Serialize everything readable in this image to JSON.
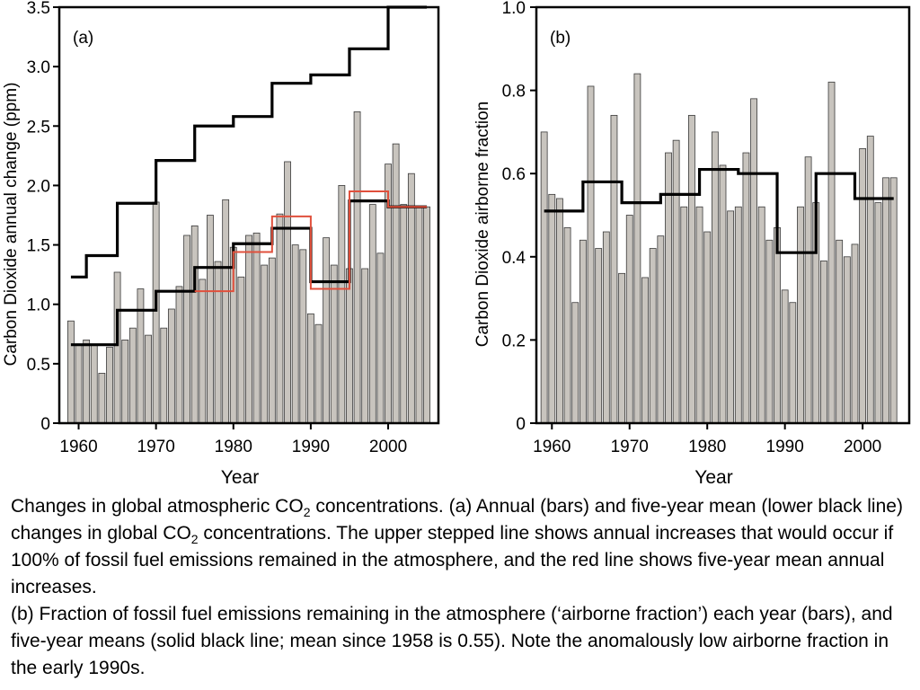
{
  "chart_data": [
    {
      "type": "bar",
      "panel_label": "(a)",
      "xlabel": "Year",
      "ylabel": "Carbon Dioxide annual change (ppm)",
      "xlim": [
        1957.5,
        2006.5
      ],
      "ylim": [
        0,
        3.5
      ],
      "xticks": [
        1960,
        1970,
        1980,
        1990,
        2000
      ],
      "yticks": [
        0,
        0.5,
        1.0,
        1.5,
        2.0,
        2.5,
        3.0,
        3.5
      ],
      "ytick_labels": [
        "0",
        "0.5",
        "1.0",
        "1.5",
        "2.0",
        "2.5",
        "3.0",
        "3.5"
      ],
      "grid": false,
      "bar_color": "#c8c4be",
      "years": [
        1959,
        1960,
        1961,
        1962,
        1963,
        1964,
        1965,
        1966,
        1967,
        1968,
        1969,
        1970,
        1971,
        1972,
        1973,
        1974,
        1975,
        1976,
        1977,
        1978,
        1979,
        1980,
        1981,
        1982,
        1983,
        1984,
        1985,
        1986,
        1987,
        1988,
        1989,
        1990,
        1991,
        1992,
        1993,
        1994,
        1995,
        1996,
        1997,
        1998,
        1999,
        2000,
        2001,
        2002,
        2003,
        2004,
        2005
      ],
      "values": [
        0.86,
        0.66,
        0.7,
        0.66,
        0.42,
        0.64,
        1.27,
        0.7,
        0.8,
        1.13,
        0.74,
        1.86,
        0.8,
        0.96,
        1.15,
        1.58,
        1.66,
        1.21,
        1.75,
        1.36,
        1.88,
        1.48,
        1.23,
        1.58,
        1.6,
        1.33,
        1.39,
        1.76,
        2.2,
        1.5,
        1.46,
        0.92,
        0.83,
        1.56,
        1.33,
        2.0,
        1.3,
        2.62,
        1.3,
        1.84,
        1.43,
        2.18,
        2.35,
        1.84,
        2.1,
        1.82,
        1.82
      ],
      "step_lines": [
        {
          "color": "#000000",
          "segments": [
            {
              "x": [
                1959,
                1961
              ],
              "y": 1.23
            },
            {
              "x": [
                1961,
                1965
              ],
              "y": 1.41
            },
            {
              "x": [
                1965,
                1970
              ],
              "y": 1.85
            },
            {
              "x": [
                1970,
                1975
              ],
              "y": 2.21
            },
            {
              "x": [
                1975,
                1980
              ],
              "y": 2.5
            },
            {
              "x": [
                1980,
                1985
              ],
              "y": 2.58
            },
            {
              "x": [
                1985,
                1990
              ],
              "y": 2.86
            },
            {
              "x": [
                1990,
                1995
              ],
              "y": 2.93
            },
            {
              "x": [
                1995,
                2000
              ],
              "y": 3.15
            },
            {
              "x": [
                2000,
                2005
              ],
              "y": 3.5
            }
          ]
        },
        {
          "color": "#000000",
          "segments": [
            {
              "x": [
                1959,
                1965
              ],
              "y": 0.66
            },
            {
              "x": [
                1965,
                1970
              ],
              "y": 0.95
            },
            {
              "x": [
                1970,
                1975
              ],
              "y": 1.11
            },
            {
              "x": [
                1975,
                1980
              ],
              "y": 1.31
            },
            {
              "x": [
                1980,
                1985
              ],
              "y": 1.51
            },
            {
              "x": [
                1985,
                1990
              ],
              "y": 1.64
            },
            {
              "x": [
                1990,
                1995
              ],
              "y": 1.19
            },
            {
              "x": [
                1995,
                2000
              ],
              "y": 1.87
            },
            {
              "x": [
                2000,
                2005
              ],
              "y": 1.82
            }
          ]
        },
        {
          "color": "#e0503c",
          "segments": [
            {
              "x": [
                1975,
                1980
              ],
              "y": 1.11
            },
            {
              "x": [
                1980,
                1985
              ],
              "y": 1.44
            },
            {
              "x": [
                1985,
                1990
              ],
              "y": 1.74
            },
            {
              "x": [
                1990,
                1995
              ],
              "y": 1.13
            },
            {
              "x": [
                1995,
                2000
              ],
              "y": 1.95
            },
            {
              "x": [
                2000,
                2005
              ],
              "y": 1.82
            }
          ]
        }
      ]
    },
    {
      "type": "bar",
      "panel_label": "(b)",
      "xlabel": "Year",
      "ylabel": "Carbon Dioxide airborne fraction",
      "xlim": [
        1958,
        2006
      ],
      "ylim": [
        0,
        1.0
      ],
      "xticks": [
        1960,
        1970,
        1980,
        1990,
        2000
      ],
      "yticks": [
        0,
        0.2,
        0.4,
        0.6,
        0.8,
        1.0
      ],
      "ytick_labels": [
        "0",
        "0.2",
        "0.4",
        "0.6",
        "0.8",
        "1.0"
      ],
      "grid": false,
      "bar_color": "#c8c4be",
      "years": [
        1959,
        1960,
        1961,
        1962,
        1963,
        1964,
        1965,
        1966,
        1967,
        1968,
        1969,
        1970,
        1971,
        1972,
        1973,
        1974,
        1975,
        1976,
        1977,
        1978,
        1979,
        1980,
        1981,
        1982,
        1983,
        1984,
        1985,
        1986,
        1987,
        1988,
        1989,
        1990,
        1991,
        1992,
        1993,
        1994,
        1995,
        1996,
        1997,
        1998,
        1999,
        2000,
        2001,
        2002,
        2003,
        2004
      ],
      "values": [
        0.7,
        0.55,
        0.54,
        0.47,
        0.29,
        0.44,
        0.81,
        0.42,
        0.46,
        0.74,
        0.36,
        0.5,
        0.84,
        0.35,
        0.42,
        0.45,
        0.65,
        0.68,
        0.52,
        0.74,
        0.52,
        0.46,
        0.7,
        0.62,
        0.51,
        0.52,
        0.65,
        0.78,
        0.52,
        0.44,
        0.47,
        0.32,
        0.29,
        0.52,
        0.64,
        0.53,
        0.39,
        0.82,
        0.44,
        0.4,
        0.43,
        0.66,
        0.69,
        0.53,
        0.59,
        0.59
      ],
      "step_lines": [
        {
          "color": "#000000",
          "segments": [
            {
              "x": [
                1959,
                1964
              ],
              "y": 0.51
            },
            {
              "x": [
                1964,
                1969
              ],
              "y": 0.58
            },
            {
              "x": [
                1969,
                1974
              ],
              "y": 0.53
            },
            {
              "x": [
                1974,
                1979
              ],
              "y": 0.55
            },
            {
              "x": [
                1979,
                1984
              ],
              "y": 0.61
            },
            {
              "x": [
                1984,
                1989
              ],
              "y": 0.6
            },
            {
              "x": [
                1989,
                1994
              ],
              "y": 0.41
            },
            {
              "x": [
                1994,
                1999
              ],
              "y": 0.6
            },
            {
              "x": [
                1999,
                2004
              ],
              "y": 0.54
            }
          ]
        }
      ]
    }
  ],
  "caption": {
    "p1_a": "Changes in global atmospheric CO",
    "p1_sub": "2",
    "p1_b": " concentrations. (a) Annual (bars) and five-year mean (lower black line) changes in global CO",
    "p1_sub2": "2",
    "p1_c": " concentrations. The upper stepped line shows annual increases that would occur if 100% of fossil fuel emissions remained in the atmosphere, and the red line shows five-year mean annual increases.",
    "p2": "(b) Fraction of fossil fuel emissions remaining in the atmosphere (‘airborne fraction’) each year (bars), and five-year means (solid black line; mean since 1958 is 0.55). Note the anomalously low airborne fraction in the early 1990s."
  }
}
